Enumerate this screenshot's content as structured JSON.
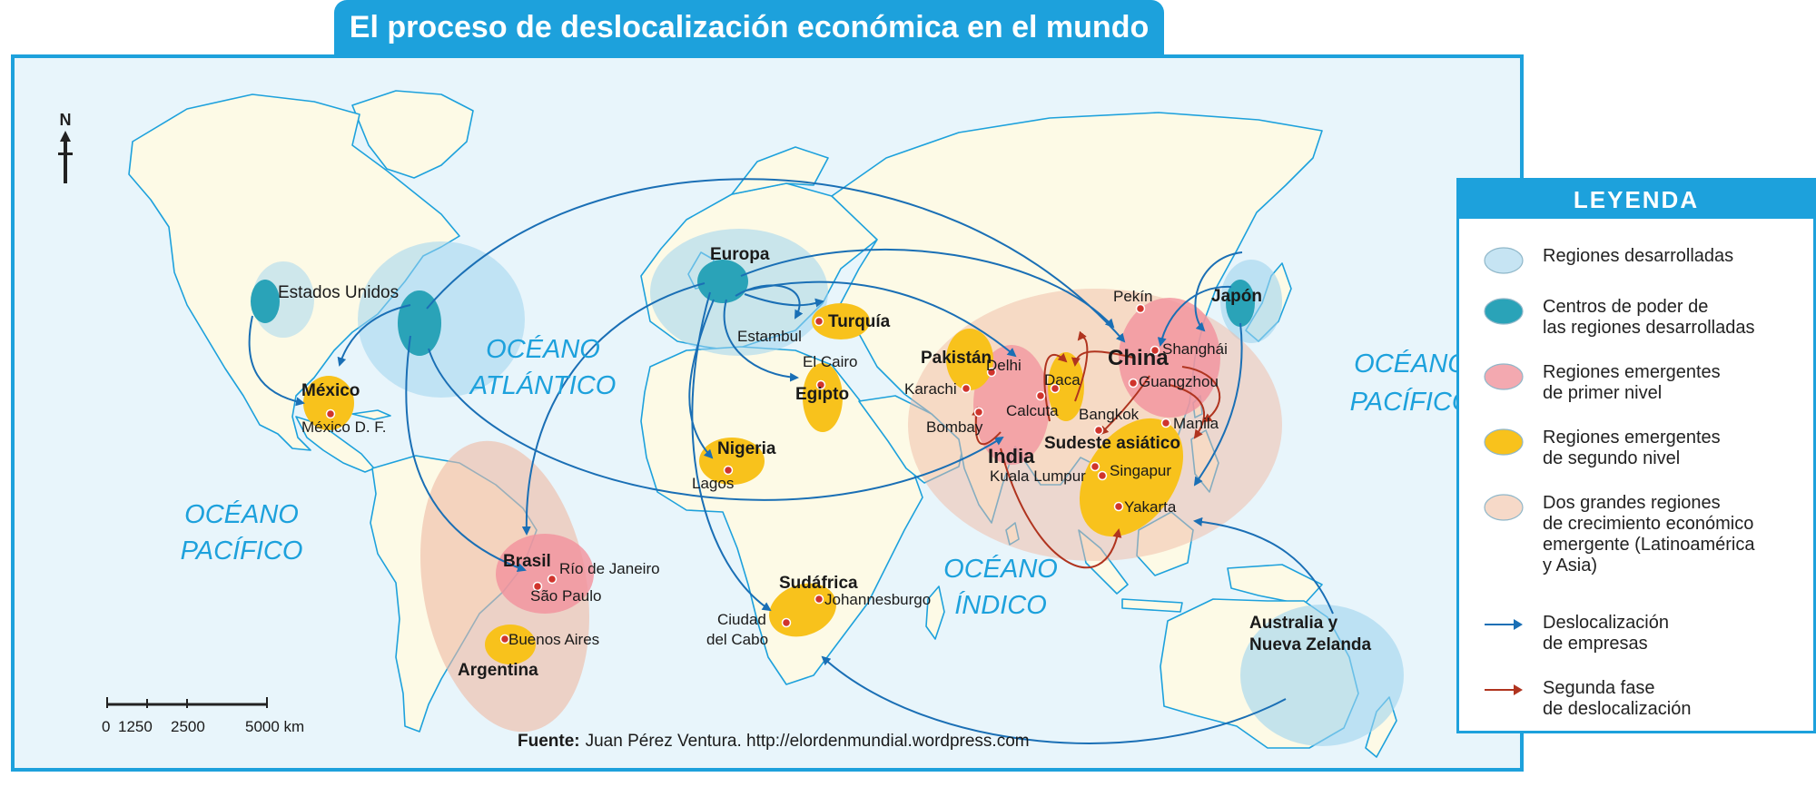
{
  "title": "El proceso de deslocalización económica en el mundo",
  "compass": "N",
  "oceans": {
    "atlantic": [
      "OCÉANO",
      "ATLÁNTICO"
    ],
    "pacific_west": [
      "OCÉANO",
      "PACÍFICO"
    ],
    "pacific_east": [
      "OCÉANO",
      "PACÍFICO"
    ],
    "indian": [
      "OCÉANO",
      "ÍNDICO"
    ]
  },
  "regions": {
    "estados_unidos": "Estados Unidos",
    "mexico": "México",
    "brasil": "Brasil",
    "argentina": "Argentina",
    "europa": "Europa",
    "turquia": "Turquía",
    "egipto": "Egipto",
    "nigeria": "Nigeria",
    "sudafrica": "Sudáfrica",
    "pakistan": "Pakistán",
    "india": "India",
    "china": "China",
    "japon": "Japón",
    "sudeste": "Sudeste asiático",
    "australia": [
      "Australia y",
      "Nueva Zelanda"
    ]
  },
  "cities": {
    "mexico_df": "México D. F.",
    "rio": "Río de Janeiro",
    "sao_paulo": "São Paulo",
    "buenos_aires": "Buenos Aires",
    "estambul": "Estambul",
    "el_cairo": "El Cairo",
    "lagos": "Lagos",
    "johannesburgo": "Johannesburgo",
    "ciudad_del_cabo": [
      "Ciudad",
      "del Cabo"
    ],
    "karachi": "Karachi",
    "delhi": "Delhi",
    "daca": "Daca",
    "calcuta": "Calcuta",
    "bombay": "Bombay",
    "pekin": "Pekín",
    "shanghai": "Shanghái",
    "guangzhou": "Guangzhou",
    "bangkok": "Bangkok",
    "manila": "Manila",
    "kuala_lumpur": "Kuala Lumpur",
    "singapur": "Singapur",
    "yakarta": "Yakarta"
  },
  "scale": {
    "labels": [
      "0",
      "1250",
      "2500",
      "5000 km"
    ]
  },
  "source": {
    "label": "Fuente:",
    "text": "Juan Pérez Ventura. http://elordenmundial.wordpress.com"
  },
  "legend": {
    "title": "LEYENDA",
    "items": [
      {
        "text": [
          "Regiones desarrolladas"
        ],
        "color": "#c6e4f3"
      },
      {
        "text": [
          "Centros de poder de",
          "las regiones desarrolladas"
        ],
        "color": "#2aa3b8"
      },
      {
        "text": [
          "Regiones emergentes",
          "de primer nivel"
        ],
        "color": "#f3a9b0"
      },
      {
        "text": [
          "Regiones emergentes",
          "de segundo nivel"
        ],
        "color": "#f8c21c"
      },
      {
        "text": [
          "Dos grandes regiones",
          "de crecimiento económico",
          "emergente (Latinoamérica",
          "y Asia)"
        ],
        "color": "#f6d9c8"
      },
      {
        "text": [
          "Deslocalización",
          "de empresas"
        ],
        "color": "#1a6fb5"
      },
      {
        "text": [
          "Segunda fase",
          "de deslocalización"
        ],
        "color": "#b0341f"
      }
    ]
  },
  "colors": {
    "ocean": "#e8f5fb",
    "land": "#fdfae6",
    "coast": "#1da1dc",
    "accent": "#1da1dc",
    "arrow_blue": "#1a6fb5",
    "arrow_red": "#b0341f",
    "city_dot": "#d0342c"
  }
}
